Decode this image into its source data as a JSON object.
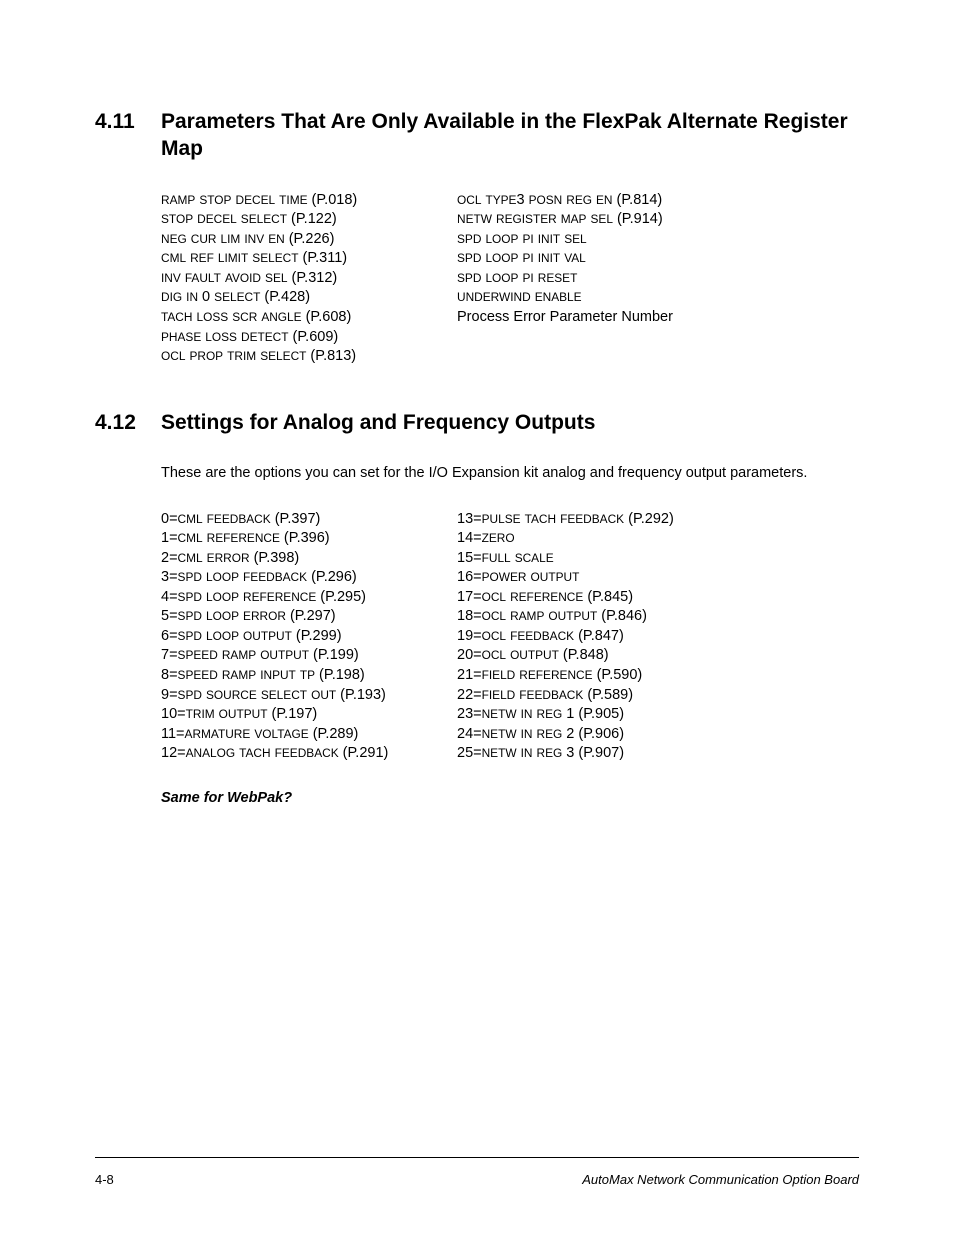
{
  "section411": {
    "num": "4.11",
    "title": "Parameters That Are Only Available in the FlexPak Alternate Register Map",
    "left": [
      {
        "name": "RAMP STOP DECEL TIME",
        "ref": "(P.018)"
      },
      {
        "name": "STOP DECEL SELECT",
        "ref": "(P.122)"
      },
      {
        "name": "NEG CUR LIM INV EN",
        "ref": "(P.226)"
      },
      {
        "name": "CML REF LIMIT SELECT",
        "ref": "(P.311)"
      },
      {
        "name": "INV FAULT AVOID SEL",
        "ref": "(P.312)"
      },
      {
        "name": "DIG IN 0 SELECT",
        "ref": "(P.428)"
      },
      {
        "name": "TACH LOSS SCR ANGLE",
        "ref": "(P.608)"
      },
      {
        "name": "PHASE LOSS DETECT",
        "ref": "(P.609)"
      },
      {
        "name": "OCL PROP TRIM SELECT",
        "ref": "(P.813)"
      }
    ],
    "right": [
      {
        "name": "OCL TYPE3 POSN REG EN",
        "ref": "(P.814)"
      },
      {
        "name": "NETW REGISTER MAP SEL",
        "ref": "(P.914)"
      },
      {
        "name": "SPD LOOP PI INIT SEL",
        "ref": ""
      },
      {
        "name": "SPD LOOP PI INIT VAL",
        "ref": ""
      },
      {
        "name": "SPD LOOP PI RESET",
        "ref": ""
      },
      {
        "name": "UNDERWIND ENABLE",
        "ref": ""
      },
      {
        "plain": "Process Error Parameter Number"
      }
    ]
  },
  "section412": {
    "num": "4.12",
    "title": "Settings for Analog and Frequency Outputs",
    "intro": "These are the options you can set for the I/O Expansion kit analog and frequency output parameters.",
    "left": [
      {
        "idx": "0=",
        "name": "CML FEEDBACK",
        "ref": "(P.397)"
      },
      {
        "idx": "1=",
        "name": "CML REFERENCE",
        "ref": "(P.396)"
      },
      {
        "idx": "2=",
        "name": "CML ERROR",
        "ref": "(P.398)"
      },
      {
        "idx": "3=",
        "name": "SPD LOOP FEEDBACK",
        "ref": "(P.296)"
      },
      {
        "idx": "4=",
        "name": "SPD LOOP REFERENCE",
        "ref": "(P.295)"
      },
      {
        "idx": "5=",
        "name": "SPD LOOP ERROR",
        "ref": "(P.297)"
      },
      {
        "idx": "6=",
        "name": "SPD LOOP OUTPUT",
        "ref": "(P.299)"
      },
      {
        "idx": "7=",
        "name": "SPEED RAMP OUTPUT",
        "ref": "(P.199)"
      },
      {
        "idx": "8=",
        "name": "SPEED RAMP INPUT TP",
        "ref": "(P.198)"
      },
      {
        "idx": "9=",
        "name": "SPD SOURCE SELECT OUT",
        "ref": "(P.193)"
      },
      {
        "idx": "10=",
        "name": "TRIM OUTPUT",
        "ref": "(P.197)"
      },
      {
        "idx": "11=",
        "name": "ARMATURE VOLTAGE",
        "ref": "(P.289)"
      },
      {
        "idx": "12=",
        "name": "ANALOG TACH FEEDBACK",
        "ref": "(P.291)"
      }
    ],
    "right": [
      {
        "idx": "13=",
        "name": "PULSE TACH FEEDBACK",
        "ref": "(P.292)"
      },
      {
        "idx": "14=",
        "name": "ZERO",
        "ref": ""
      },
      {
        "idx": "15=",
        "name": "FULL SCALE",
        "ref": ""
      },
      {
        "idx": "16=",
        "name": "POWER OUTPUT",
        "ref": ""
      },
      {
        "idx": "17=",
        "name": "OCL REFERENCE",
        "ref": "(P.845)"
      },
      {
        "idx": "18=",
        "name": "OCL RAMP OUTPUT",
        "ref": "(P.846)"
      },
      {
        "idx": "19=",
        "name": "OCL FEEDBACK",
        "ref": "(P.847)"
      },
      {
        "idx": "20=",
        "name": "OCL OUTPUT",
        "ref": "(P.848)"
      },
      {
        "idx": "21=",
        "name": "FIELD REFERENCE",
        "ref": "(P.590)"
      },
      {
        "idx": "22=",
        "name": "FIELD FEEDBACK",
        "ref": "(P.589)"
      },
      {
        "idx": "23=",
        "name": "NETW IN REG 1",
        "ref": "(P.905)"
      },
      {
        "idx": "24=",
        "name": "NETW IN REG 2",
        "ref": "(P.906)"
      },
      {
        "idx": "25=",
        "name": "NETW IN REG 3",
        "ref": "(P.907)"
      }
    ],
    "note": "Same for WebPak?"
  },
  "footer": {
    "left": "4-8",
    "right": "AutoMax Network Communication Option Board"
  }
}
